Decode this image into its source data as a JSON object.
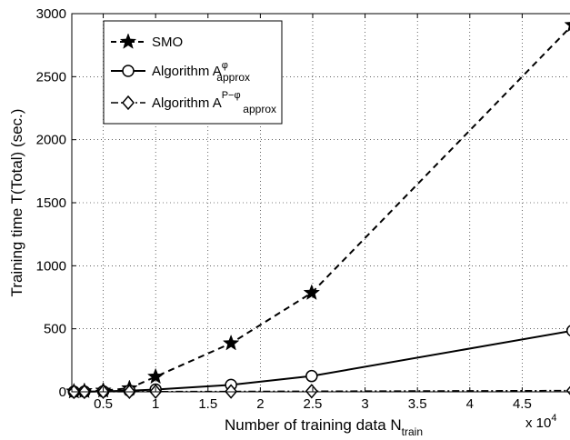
{
  "chart_data": {
    "type": "line",
    "x_label_main": "Number of training data N",
    "x_label_sub": "train",
    "x_multiplier_label": "x 10",
    "x_multiplier_exp": "4",
    "y_label": "Training time T(Total) (sec.)",
    "xlim": [
      0.2,
      5.0
    ],
    "ylim": [
      0,
      3000
    ],
    "x_ticks": [
      0.5,
      1,
      1.5,
      2,
      2.5,
      3,
      3.5,
      4,
      4.5
    ],
    "x_tick_labels": [
      "0.5",
      "1",
      "1.5",
      "2",
      "2.5",
      "3",
      "3.5",
      "4",
      "4.5"
    ],
    "y_ticks": [
      0,
      500,
      1000,
      1500,
      2000,
      2500,
      3000
    ],
    "y_tick_labels": [
      "0",
      "500",
      "1000",
      "1500",
      "2000",
      "2500",
      "3000"
    ],
    "grid": true,
    "legend_position": "top-left",
    "series": [
      {
        "name": "SMO",
        "marker": "star",
        "line": "dashed",
        "x": [
          0.22,
          0.32,
          0.5,
          0.75,
          1.0,
          1.72,
          2.49,
          4.98
        ],
        "y": [
          3,
          6,
          10,
          28,
          120,
          385,
          785,
          2910
        ]
      },
      {
        "name_main": "Algorithm A",
        "name_sup": "φ",
        "name_sub": "approx",
        "marker": "circle",
        "line": "solid",
        "x": [
          0.22,
          0.32,
          0.5,
          0.75,
          1.0,
          1.72,
          2.49,
          4.98
        ],
        "y": [
          1,
          2,
          4,
          9,
          18,
          55,
          125,
          485
        ]
      },
      {
        "name_main": "Algorithm A",
        "name_sup": "P−φ",
        "name_sub": "approx",
        "marker": "diamond",
        "line": "dashdot",
        "x": [
          0.22,
          0.32,
          0.5,
          0.75,
          1.0,
          1.72,
          2.49,
          4.98
        ],
        "y": [
          0,
          0,
          1,
          1,
          2,
          3,
          5,
          10
        ]
      }
    ]
  }
}
